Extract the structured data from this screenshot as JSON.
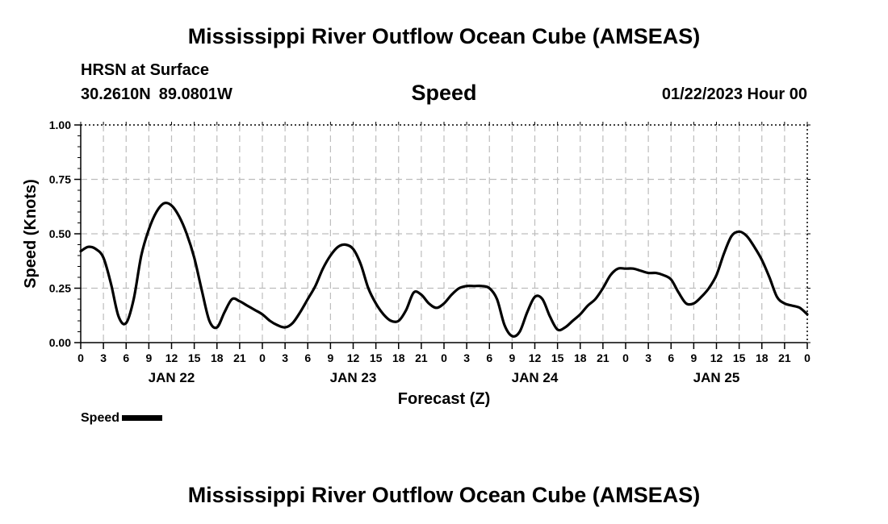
{
  "header": {
    "title": "Mississippi River Outflow Ocean Cube (AMSEAS)",
    "station": "HRSN at Surface",
    "lat": "30.2610N",
    "lon": "89.0801W",
    "variable": "Speed",
    "datetime": "01/22/2023 Hour 00"
  },
  "footer": {
    "title": "Mississippi River Outflow Ocean Cube (AMSEAS)"
  },
  "legend": {
    "label": "Speed",
    "color": "#000000"
  },
  "chart_data": {
    "type": "line",
    "title": "Speed",
    "xlabel": "Forecast (Z)",
    "ylabel": "Speed (Knots)",
    "xlim": [
      0,
      96
    ],
    "ylim": [
      0,
      1.0
    ],
    "grid": true,
    "legend_position": "bottom-left",
    "x_tick_labels": [
      "0",
      "3",
      "6",
      "9",
      "12",
      "15",
      "18",
      "21",
      "0",
      "3",
      "6",
      "9",
      "12",
      "15",
      "18",
      "21",
      "0",
      "3",
      "6",
      "9",
      "12",
      "15",
      "18",
      "21",
      "0",
      "3",
      "6",
      "9",
      "12",
      "15",
      "18",
      "21",
      "0"
    ],
    "y_ticks": [
      {
        "value": 0.0,
        "label": "0.00"
      },
      {
        "value": 0.25,
        "label": "0.25"
      },
      {
        "value": 0.5,
        "label": "0.50"
      },
      {
        "value": 0.75,
        "label": "0.75"
      },
      {
        "value": 1.0,
        "label": "1.00"
      }
    ],
    "day_labels": [
      {
        "hour": 12,
        "label": "JAN 22"
      },
      {
        "hour": 36,
        "label": "JAN 23"
      },
      {
        "hour": 60,
        "label": "JAN 24"
      },
      {
        "hour": 84,
        "label": "JAN 25"
      }
    ],
    "series": [
      {
        "name": "Speed",
        "color": "#000000",
        "x": [
          0,
          1,
          2,
          3,
          4,
          5,
          6,
          7,
          8,
          9,
          10,
          11,
          12,
          13,
          14,
          15,
          16,
          17,
          18,
          19,
          20,
          21,
          22,
          23,
          24,
          25,
          26,
          27,
          28,
          29,
          30,
          31,
          32,
          33,
          34,
          35,
          36,
          37,
          38,
          39,
          40,
          41,
          42,
          43,
          44,
          45,
          46,
          47,
          48,
          49,
          50,
          51,
          52,
          53,
          54,
          55,
          56,
          57,
          58,
          59,
          60,
          61,
          62,
          63,
          64,
          65,
          66,
          67,
          68,
          69,
          70,
          71,
          72,
          73,
          74,
          75,
          76,
          77,
          78,
          79,
          80,
          81,
          82,
          83,
          84,
          85,
          86,
          87,
          88,
          89,
          90,
          91,
          92,
          93,
          94,
          95,
          96
        ],
        "values": [
          0.42,
          0.44,
          0.43,
          0.39,
          0.27,
          0.12,
          0.09,
          0.2,
          0.4,
          0.52,
          0.6,
          0.64,
          0.63,
          0.58,
          0.5,
          0.39,
          0.24,
          0.1,
          0.07,
          0.14,
          0.2,
          0.19,
          0.17,
          0.15,
          0.13,
          0.1,
          0.08,
          0.07,
          0.09,
          0.14,
          0.2,
          0.26,
          0.34,
          0.4,
          0.44,
          0.45,
          0.43,
          0.36,
          0.25,
          0.18,
          0.13,
          0.1,
          0.1,
          0.15,
          0.23,
          0.22,
          0.18,
          0.16,
          0.18,
          0.22,
          0.25,
          0.26,
          0.26,
          0.26,
          0.25,
          0.2,
          0.08,
          0.03,
          0.05,
          0.14,
          0.21,
          0.2,
          0.12,
          0.06,
          0.07,
          0.1,
          0.13,
          0.17,
          0.2,
          0.25,
          0.31,
          0.34,
          0.34,
          0.34,
          0.33,
          0.32,
          0.32,
          0.31,
          0.29,
          0.23,
          0.18,
          0.18,
          0.21,
          0.25,
          0.31,
          0.41,
          0.49,
          0.51,
          0.49,
          0.44,
          0.38,
          0.3,
          0.21,
          0.18,
          0.17,
          0.16,
          0.13
        ]
      }
    ]
  }
}
